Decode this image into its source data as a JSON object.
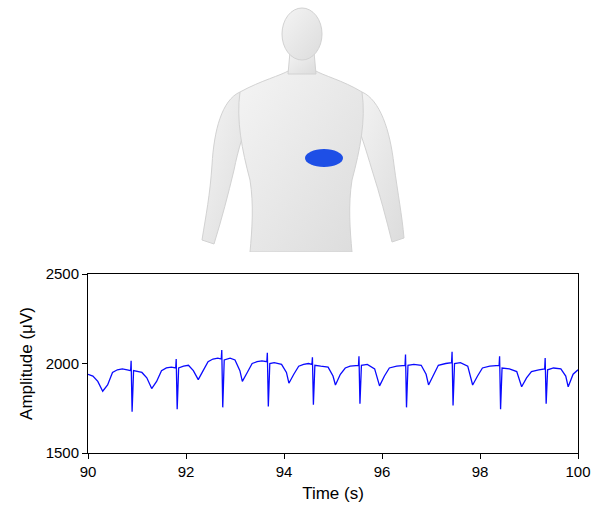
{
  "chart_data": {
    "type": "line",
    "x_label": "Time (s)",
    "y_label": "Amplitude (μV)",
    "color": "#0a0aff",
    "xlim": [
      90,
      100
    ],
    "ylim": [
      1500,
      2500
    ],
    "xticks": [
      90,
      92,
      94,
      96,
      98,
      100
    ],
    "yticks": [
      1500,
      2000,
      2500
    ],
    "grid": false,
    "x": [
      90.0,
      90.1,
      90.2,
      90.3,
      90.4,
      90.5,
      90.6,
      90.7,
      90.8,
      90.87,
      90.88,
      90.9,
      90.93,
      91.0,
      91.1,
      91.2,
      91.3,
      91.4,
      91.5,
      91.6,
      91.7,
      91.79,
      91.8,
      91.82,
      91.85,
      91.95,
      92.05,
      92.15,
      92.25,
      92.35,
      92.45,
      92.55,
      92.65,
      92.72,
      92.73,
      92.75,
      92.78,
      92.9,
      93.0,
      93.1,
      93.15,
      93.25,
      93.35,
      93.45,
      93.55,
      93.65,
      93.66,
      93.68,
      93.71,
      93.8,
      93.95,
      94.05,
      94.1,
      94.2,
      94.3,
      94.4,
      94.5,
      94.57,
      94.58,
      94.6,
      94.63,
      94.75,
      94.9,
      95.0,
      95.05,
      95.15,
      95.25,
      95.35,
      95.45,
      95.52,
      95.53,
      95.55,
      95.58,
      95.7,
      95.85,
      95.95,
      96.05,
      96.15,
      96.3,
      96.47,
      96.48,
      96.5,
      96.53,
      96.65,
      96.8,
      96.9,
      96.95,
      97.05,
      97.15,
      97.3,
      97.42,
      97.43,
      97.45,
      97.48,
      97.6,
      97.75,
      97.85,
      97.95,
      98.05,
      98.2,
      98.39,
      98.4,
      98.42,
      98.45,
      98.6,
      98.75,
      98.85,
      98.95,
      99.05,
      99.2,
      99.32,
      99.33,
      99.35,
      99.38,
      99.5,
      99.65,
      99.75,
      99.8,
      99.9,
      100.0
    ],
    "values": [
      1940,
      1930,
      1900,
      1845,
      1880,
      1950,
      1965,
      1970,
      1965,
      1960,
      2015,
      1730,
      1960,
      1955,
      1950,
      1920,
      1860,
      1900,
      1960,
      1975,
      1980,
      1975,
      2025,
      1745,
      1975,
      1985,
      1990,
      1960,
      1910,
      1960,
      2010,
      2025,
      2030,
      2025,
      2075,
      1755,
      2020,
      2030,
      2020,
      1960,
      1900,
      1950,
      2000,
      2010,
      2015,
      2010,
      2060,
      1760,
      2000,
      2005,
      1995,
      1950,
      1890,
      1940,
      1985,
      1995,
      2000,
      1995,
      2035,
      1770,
      1990,
      1985,
      1980,
      1930,
      1880,
      1940,
      1975,
      1985,
      1990,
      1990,
      2040,
      1775,
      1990,
      1995,
      1970,
      1875,
      1930,
      1975,
      1985,
      1990,
      2050,
      1755,
      1990,
      1995,
      1990,
      1940,
      1880,
      1935,
      1990,
      2000,
      2005,
      2065,
      1765,
      2000,
      2005,
      1985,
      1880,
      1930,
      1975,
      1985,
      1990,
      2040,
      1745,
      1975,
      1970,
      1955,
      1870,
      1920,
      1955,
      1965,
      1970,
      2030,
      1775,
      1965,
      1975,
      1970,
      1930,
      1870,
      1940,
      1965
    ]
  }
}
